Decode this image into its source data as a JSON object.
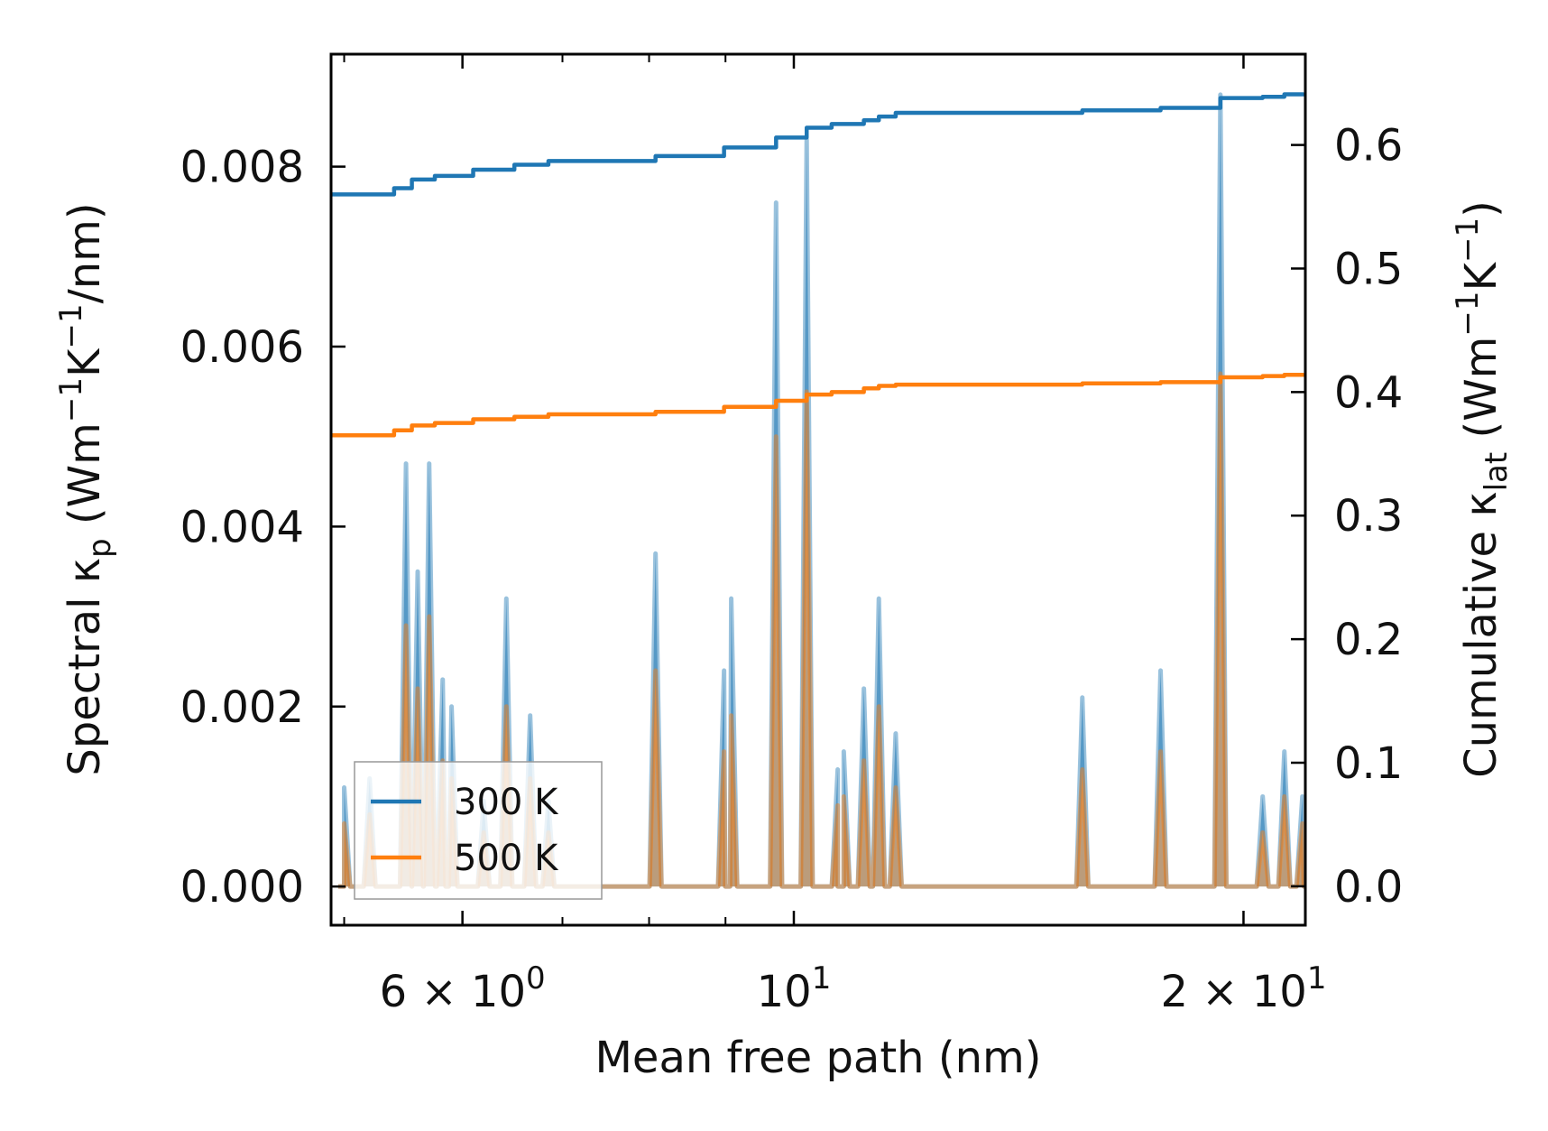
{
  "chart_data": {
    "type": "line",
    "xscale": "log",
    "xlim": [
      4.9,
      22.0
    ],
    "ylim": [
      -0.00043,
      0.00925
    ],
    "y2lim": [
      -0.0315,
      0.6735
    ],
    "xlabel": "Mean free path (nm)",
    "ylabel": {
      "pre": "Spectral κ",
      "sub": "p",
      "mid": " (Wm",
      "sup1": "−1",
      "k": "K",
      "sup2": "−1",
      "post": "/nm)"
    },
    "y2label": {
      "pre": "Cumulative κ",
      "sub": "lat",
      "mid": " (Wm",
      "sup1": "−1",
      "k": "K",
      "sup2": "−1",
      "post": ")"
    },
    "xticks": [
      {
        "value": 6,
        "mant": "6",
        "times": "×",
        "base": "10",
        "exp": "0"
      },
      {
        "value": 10,
        "mant": "",
        "times": "",
        "base": "10",
        "exp": "1"
      },
      {
        "value": 20,
        "mant": "2",
        "times": "×",
        "base": "10",
        "exp": "1"
      }
    ],
    "x_minor_ticks": [
      5,
      7,
      8,
      9
    ],
    "yticks": [
      {
        "value": 0.0,
        "label": "0.000"
      },
      {
        "value": 0.002,
        "label": "0.002"
      },
      {
        "value": 0.004,
        "label": "0.004"
      },
      {
        "value": 0.006,
        "label": "0.006"
      },
      {
        "value": 0.008,
        "label": "0.008"
      }
    ],
    "y2ticks": [
      {
        "value": 0.0,
        "label": "0.0"
      },
      {
        "value": 0.1,
        "label": "0.1"
      },
      {
        "value": 0.2,
        "label": "0.2"
      },
      {
        "value": 0.3,
        "label": "0.3"
      },
      {
        "value": 0.4,
        "label": "0.4"
      },
      {
        "value": 0.5,
        "label": "0.5"
      },
      {
        "value": 0.6,
        "label": "0.6"
      }
    ],
    "legend": {
      "location": "lower-left",
      "entries": [
        {
          "label": "300 K",
          "color": "#1f77b4"
        },
        {
          "label": "500 K",
          "color": "#ff7f0e"
        }
      ]
    },
    "peak_width_log": 0.004,
    "series": [
      {
        "name": "300 K",
        "color": "#1f77b4",
        "fill_color": "#1f77b4",
        "spectral_peaks": [
          [
            5.0,
            0.0011
          ],
          [
            5.2,
            0.0012
          ],
          [
            5.5,
            0.0047
          ],
          [
            5.6,
            0.0035
          ],
          [
            5.7,
            0.0047
          ],
          [
            5.82,
            0.0023
          ],
          [
            5.9,
            0.002
          ],
          [
            6.2,
            0.00095
          ],
          [
            6.42,
            0.0032
          ],
          [
            6.66,
            0.0019
          ],
          [
            6.85,
            0.00095
          ],
          [
            8.08,
            0.0037
          ],
          [
            8.98,
            0.0024
          ],
          [
            9.08,
            0.0032
          ],
          [
            9.73,
            0.0076
          ],
          [
            10.2,
            0.0083
          ],
          [
            10.7,
            0.0013
          ],
          [
            10.8,
            0.0015
          ],
          [
            11.14,
            0.0022
          ],
          [
            11.4,
            0.0032
          ],
          [
            11.7,
            0.0017
          ],
          [
            15.6,
            0.0021
          ],
          [
            17.6,
            0.0024
          ],
          [
            19.3,
            0.0088
          ],
          [
            20.6,
            0.001
          ],
          [
            21.3,
            0.0015
          ],
          [
            21.9,
            0.001
          ]
        ],
        "cumulative": [
          [
            4.9,
            0.56
          ],
          [
            5.12,
            0.56
          ],
          [
            5.4,
            0.565
          ],
          [
            5.55,
            0.572
          ],
          [
            5.75,
            0.575
          ],
          [
            6.1,
            0.58
          ],
          [
            6.5,
            0.584
          ],
          [
            6.85,
            0.587
          ],
          [
            8.08,
            0.591
          ],
          [
            8.98,
            0.598
          ],
          [
            9.73,
            0.606
          ],
          [
            10.2,
            0.614
          ],
          [
            10.6,
            0.617
          ],
          [
            11.14,
            0.62
          ],
          [
            11.4,
            0.623
          ],
          [
            11.7,
            0.626
          ],
          [
            15.6,
            0.628
          ],
          [
            17.6,
            0.63
          ],
          [
            19.3,
            0.638
          ],
          [
            20.6,
            0.639
          ],
          [
            21.3,
            0.641
          ],
          [
            21.95,
            0.642
          ]
        ]
      },
      {
        "name": "500 K",
        "color": "#ff7f0e",
        "fill_color": "#ff7f0e",
        "spectral_peaks": [
          [
            5.0,
            0.0007
          ],
          [
            5.2,
            0.0008
          ],
          [
            5.5,
            0.0029
          ],
          [
            5.6,
            0.0022
          ],
          [
            5.7,
            0.003
          ],
          [
            5.82,
            0.0014
          ],
          [
            5.9,
            0.0012
          ],
          [
            6.2,
            0.0006
          ],
          [
            6.42,
            0.002
          ],
          [
            6.66,
            0.0012
          ],
          [
            6.85,
            0.0006
          ],
          [
            8.08,
            0.0024
          ],
          [
            8.98,
            0.0015
          ],
          [
            9.08,
            0.0019
          ],
          [
            9.73,
            0.005
          ],
          [
            10.2,
            0.0055
          ],
          [
            10.7,
            0.0009
          ],
          [
            10.8,
            0.001
          ],
          [
            11.14,
            0.0014
          ],
          [
            11.4,
            0.002
          ],
          [
            11.7,
            0.0011
          ],
          [
            15.6,
            0.0013
          ],
          [
            17.6,
            0.0015
          ],
          [
            19.3,
            0.0057
          ],
          [
            20.6,
            0.0006
          ],
          [
            21.3,
            0.001
          ],
          [
            21.9,
            0.0007
          ]
        ],
        "cumulative": [
          [
            4.9,
            0.365
          ],
          [
            5.12,
            0.365
          ],
          [
            5.4,
            0.369
          ],
          [
            5.55,
            0.373
          ],
          [
            5.75,
            0.375
          ],
          [
            6.1,
            0.378
          ],
          [
            6.5,
            0.38
          ],
          [
            6.85,
            0.382
          ],
          [
            8.08,
            0.384
          ],
          [
            8.98,
            0.388
          ],
          [
            9.73,
            0.393
          ],
          [
            10.2,
            0.398
          ],
          [
            10.6,
            0.4
          ],
          [
            11.14,
            0.403
          ],
          [
            11.4,
            0.405
          ],
          [
            11.7,
            0.406
          ],
          [
            15.6,
            0.407
          ],
          [
            17.6,
            0.408
          ],
          [
            19.3,
            0.412
          ],
          [
            20.6,
            0.413
          ],
          [
            21.3,
            0.414
          ],
          [
            21.95,
            0.415
          ]
        ]
      }
    ]
  }
}
